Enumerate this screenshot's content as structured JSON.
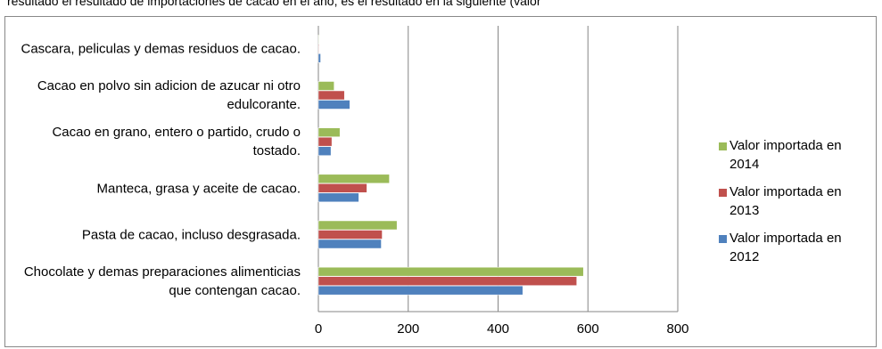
{
  "caption": "resultado el resultado de importaciones de cacao en el año, es el resultado en la siguiente (valor",
  "chart_data": {
    "type": "bar",
    "orientation": "horizontal",
    "categories": [
      "Cascara, peliculas y demas residuos de cacao.",
      "Cacao en polvo sin adicion de azucar ni otro edulcorante.",
      "Cacao en grano, entero o partido, crudo o tostado.",
      "Manteca, grasa y aceite de cacao.",
      "Pasta de cacao, incluso desgrasada.",
      "Chocolate y demas preparaciones alimenticias que contengan cacao."
    ],
    "series": [
      {
        "name": "Valor importada en 2014",
        "color": "#9bbb59",
        "values": [
          1,
          35,
          48,
          158,
          175,
          590
        ]
      },
      {
        "name": "Valor importada en 2013",
        "color": "#c0504d",
        "values": [
          1,
          58,
          30,
          108,
          142,
          575
        ]
      },
      {
        "name": "Valor importada en 2012",
        "color": "#4f81bd",
        "values": [
          5,
          70,
          28,
          90,
          140,
          455
        ]
      }
    ],
    "xlim": [
      0,
      800
    ],
    "xticks": [
      0,
      200,
      400,
      600,
      800
    ],
    "grid": true,
    "legend": "right"
  }
}
